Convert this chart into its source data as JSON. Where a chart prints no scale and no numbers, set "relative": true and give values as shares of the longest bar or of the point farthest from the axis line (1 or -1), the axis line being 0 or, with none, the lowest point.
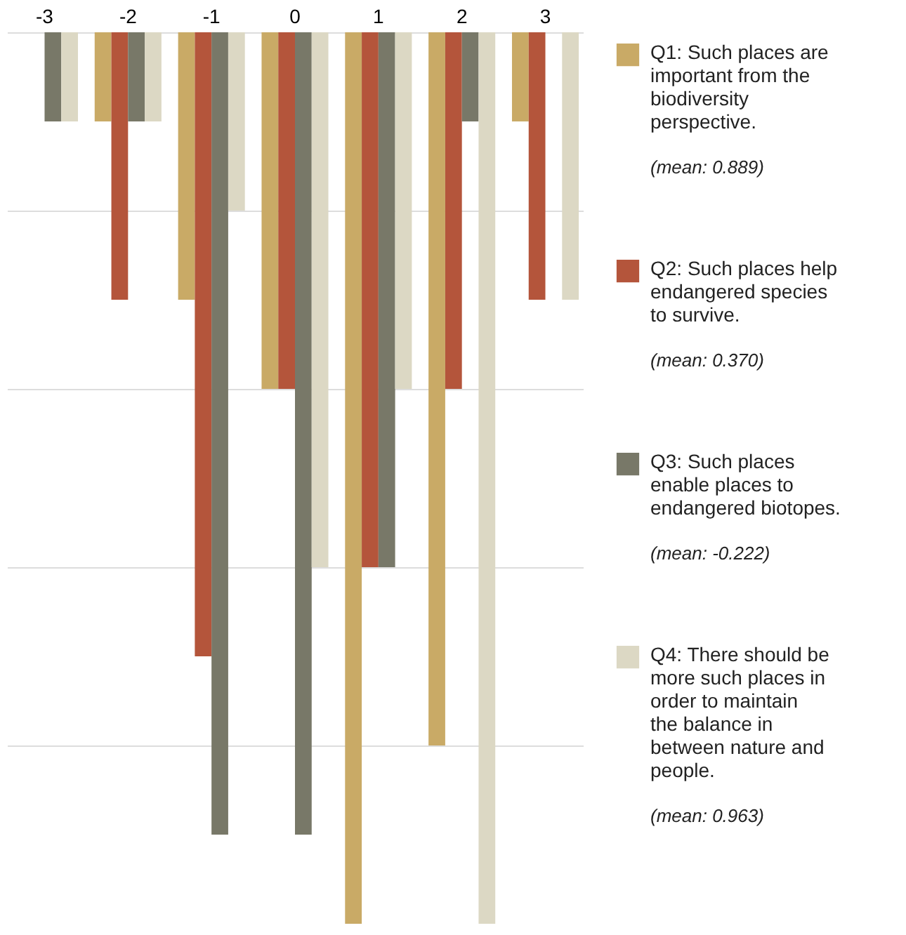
{
  "chart_data": {
    "type": "bar",
    "relative": true,
    "categories": [
      "-3",
      "-2",
      "-1",
      "0",
      "1",
      "2",
      "3"
    ],
    "series": [
      {
        "name": "Q1: Such places are important from the biodiversity perspective.",
        "color": "#c9aa66",
        "values": [
          0,
          -0.1,
          -0.3,
          -0.4,
          -1,
          -0.8,
          -0.1
        ]
      },
      {
        "name": "Q2: Such places help endangered species to survive.",
        "color": "#b4553b",
        "values": [
          0,
          -0.3,
          -0.7,
          -0.4,
          -0.6,
          -0.4,
          -0.3
        ]
      },
      {
        "name": "Q3: Such places enable places to endangered biotopes.",
        "color": "#787868",
        "values": [
          -0.1,
          -0.1,
          -0.9,
          -0.9,
          -0.6,
          -0.1,
          0
        ]
      },
      {
        "name": "Q4: There should be more such places in order to maintain the balance in between nature and people.",
        "color": "#dcd8c4",
        "values": [
          -0.1,
          -0.1,
          -0.2,
          -0.6,
          -0.4,
          -1,
          -0.3
        ]
      }
    ],
    "annotations": [
      "(mean: 0.889)",
      "(mean: 0.370)",
      "(mean: -0.222)",
      "(mean: 0.963)"
    ],
    "grid": "y",
    "legend": "right"
  }
}
